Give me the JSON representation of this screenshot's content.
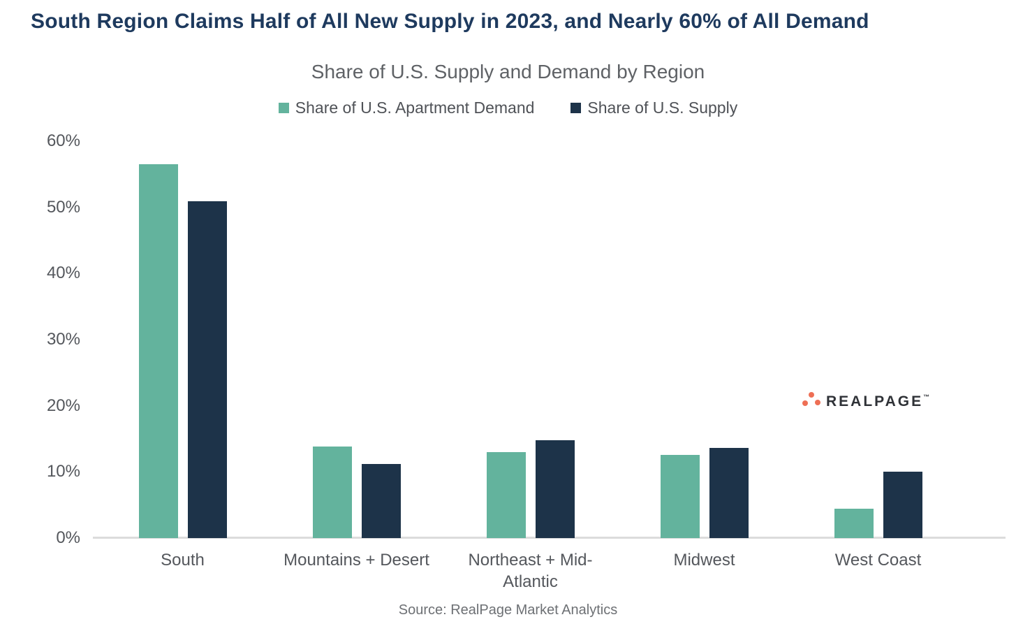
{
  "header": {
    "title": "South Region Claims Half of All New Supply in 2023, and Nearly 60% of All Demand",
    "subtitle": "Share of U.S. Supply and Demand by Region"
  },
  "legend": {
    "items": [
      {
        "label": "Share of U.S. Apartment Demand",
        "color": "#63b39d"
      },
      {
        "label": "Share of U.S. Supply",
        "color": "#1d3349"
      }
    ]
  },
  "chart_data": {
    "type": "bar",
    "title": "Share of U.S. Supply and Demand by Region",
    "categories": [
      "South",
      "Mountains + Desert",
      "Northeast + Mid-Atlantic",
      "Midwest",
      "West Coast"
    ],
    "series": [
      {
        "name": "Share of U.S. Apartment Demand",
        "color": "#63b39d",
        "values": [
          56.5,
          13.8,
          13.0,
          12.6,
          4.4
        ]
      },
      {
        "name": "Share of U.S. Supply",
        "color": "#1d3349",
        "values": [
          50.9,
          11.2,
          14.8,
          13.6,
          10.0
        ]
      }
    ],
    "xlabel": "",
    "ylabel": "",
    "ylim": [
      0,
      60
    ],
    "ytick_labels": [
      "0%",
      "10%",
      "20%",
      "30%",
      "40%",
      "50%",
      "60%"
    ],
    "ytick_values": [
      0,
      10,
      20,
      30,
      40,
      50,
      60
    ],
    "grid": false,
    "legend_position": "top"
  },
  "branding": {
    "logo_text": "REALPAGE",
    "trademark": "™",
    "dot_color": "#ee6f55",
    "text_color": "#2f3237"
  },
  "footer": {
    "source": "Source: RealPage Market Analytics"
  }
}
